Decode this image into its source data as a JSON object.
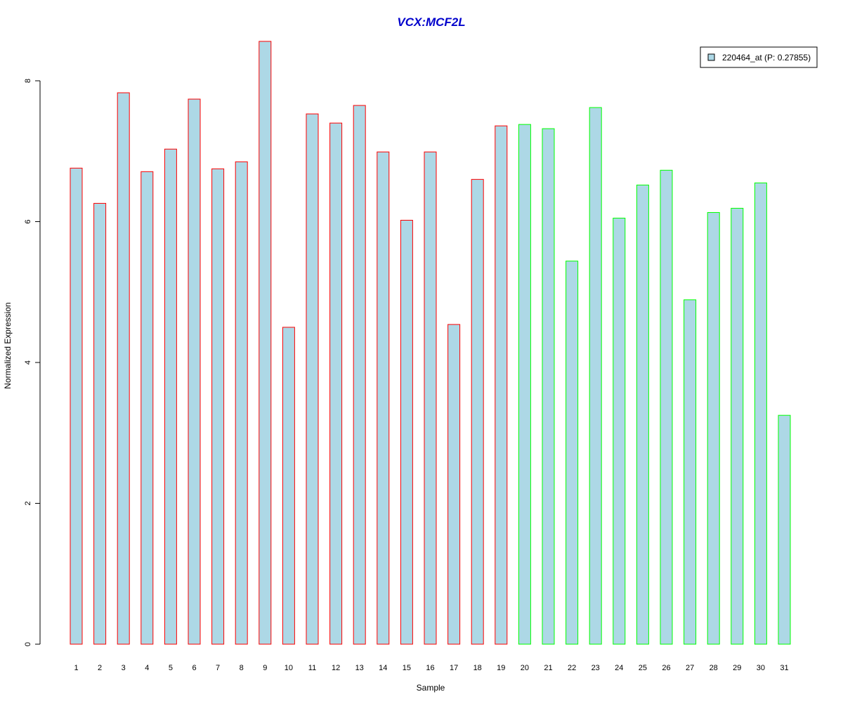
{
  "chart_data": {
    "type": "bar",
    "title": "VCX:MCF2L",
    "xlabel": "Sample",
    "ylabel": "Normalized Expression",
    "ylim": [
      0,
      8.6
    ],
    "yticks": [
      0,
      2,
      4,
      6,
      8
    ],
    "categories": [
      "1",
      "2",
      "3",
      "4",
      "5",
      "6",
      "7",
      "8",
      "9",
      "10",
      "11",
      "12",
      "13",
      "14",
      "15",
      "16",
      "17",
      "18",
      "19",
      "20",
      "21",
      "22",
      "23",
      "24",
      "25",
      "26",
      "27",
      "28",
      "29",
      "30",
      "31"
    ],
    "series": [
      {
        "name": "220464_at (P: 0.27855)",
        "values": [
          6.76,
          6.26,
          7.83,
          6.71,
          7.03,
          7.74,
          6.75,
          6.85,
          8.56,
          4.5,
          7.53,
          7.4,
          7.65,
          6.99,
          6.02,
          6.99,
          4.54,
          6.6,
          7.36,
          7.38,
          7.32,
          5.44,
          7.62,
          6.05,
          6.52,
          6.73,
          4.89,
          6.13,
          6.19,
          6.55,
          3.25
        ],
        "fill": "#add8e6",
        "border_colors": [
          "#ff0000",
          "#ff0000",
          "#ff0000",
          "#ff0000",
          "#ff0000",
          "#ff0000",
          "#ff0000",
          "#ff0000",
          "#ff0000",
          "#ff0000",
          "#ff0000",
          "#ff0000",
          "#ff0000",
          "#ff0000",
          "#ff0000",
          "#ff0000",
          "#ff0000",
          "#ff0000",
          "#ff0000",
          "#00ff00",
          "#00ff00",
          "#00ff00",
          "#00ff00",
          "#00ff00",
          "#00ff00",
          "#00ff00",
          "#00ff00",
          "#00ff00",
          "#00ff00",
          "#00ff00",
          "#00ff00"
        ]
      }
    ],
    "title_color": "#0000cc",
    "legend_position": "top-right",
    "grid": false
  }
}
